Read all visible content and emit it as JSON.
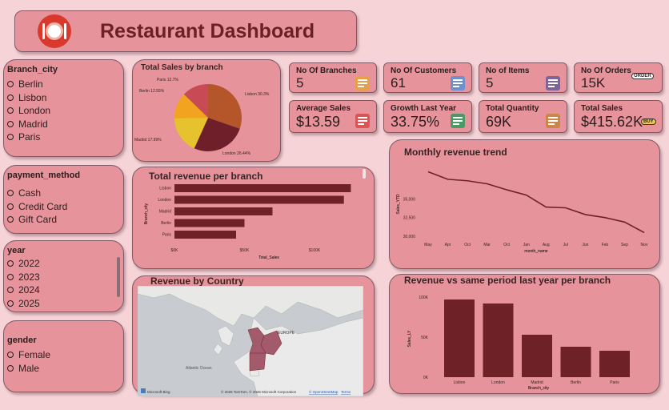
{
  "header": {
    "title": "Restaurant Dashboard"
  },
  "slicers": {
    "branch": {
      "title": "Branch_city",
      "options": [
        "Berlin",
        "Lisbon",
        "London",
        "Madrid",
        "Paris"
      ]
    },
    "payment": {
      "title": "payment_method",
      "options": [
        "Cash",
        "Credit Card",
        "Gift Card"
      ]
    },
    "year": {
      "title": "year",
      "options": [
        "2022",
        "2023",
        "2024",
        "2025"
      ]
    },
    "gender": {
      "title": "gender",
      "options": [
        "Female",
        "Male"
      ]
    }
  },
  "cards": [
    {
      "label": "No Of Branches",
      "value": "5",
      "icon": "network-icon"
    },
    {
      "label": "No Of Customers",
      "value": "61",
      "icon": "people-icon"
    },
    {
      "label": "No of Items",
      "value": "5",
      "icon": "list-icon"
    },
    {
      "label": "No Of Orders",
      "value": "15K",
      "icon": "order-icon",
      "badge": "ORDER"
    },
    {
      "label": "Average Sales",
      "value": "$13.59",
      "icon": "person-chart-icon"
    },
    {
      "label": "Growth Last Year",
      "value": "33.75%",
      "icon": "growth-runner-icon"
    },
    {
      "label": "Total Quantity",
      "value": "69K",
      "icon": "boxes-icon"
    },
    {
      "label": "Total Sales",
      "value": "$415.62K",
      "icon": "shopping-bag-icon",
      "badge": "BUY"
    }
  ],
  "colors": {
    "panel": "#e7939b",
    "bar": "#6e2228",
    "line": "#6e2228",
    "pie": {
      "Lisbon": "#b5552a",
      "London": "#6e1f2a",
      "Madrid": "#e6c22e",
      "Berlin": "#f2a31f",
      "Paris": "#c74a55"
    }
  },
  "map": {
    "title": "Revenue by Country",
    "ocean_label": "Atlantic Ocean",
    "region_label": "EUROPE",
    "attribution": "© 2026 TomTom, © 2026 Microsoft Corporation",
    "terms_link": "Terms",
    "feedback_link": "© OpenStreetMap",
    "logo": "Microsoft Bing"
  },
  "chart_data": [
    {
      "type": "pie",
      "title": "Total Sales by branch",
      "categories": [
        "Lisbon",
        "London",
        "Madrid",
        "Berlin",
        "Paris"
      ],
      "values": [
        30.3,
        26.44,
        17.99,
        12.55,
        12.72
      ],
      "labels": [
        "Lisbon 30.3%",
        "London 26.44%",
        "Madrid 17.99%",
        "Berlin 12.55%",
        "Paris 12.7%"
      ]
    },
    {
      "type": "bar",
      "orientation": "horizontal",
      "title": "Total revenue per branch",
      "categories": [
        "Lisbon",
        "London",
        "Madrid",
        "Berlin",
        "Paris"
      ],
      "values": [
        126,
        121,
        70,
        50,
        44
      ],
      "xlabel": "Total_Sales",
      "ylabel": "Branch_city",
      "xticks": [
        "$0K",
        "$50K",
        "$100K"
      ],
      "xlim": [
        0,
        132
      ]
    },
    {
      "type": "line",
      "title": "Monthly revenue trend",
      "categories": [
        "May",
        "Apr",
        "Oct",
        "Mar",
        "Oct",
        "Jan",
        "Aug",
        "Jul",
        "Jun",
        "Feb",
        "Sep",
        "Nov"
      ],
      "values": [
        38600,
        37600,
        37400,
        37000,
        36200,
        35500,
        33900,
        33800,
        32900,
        32500,
        31900,
        30500
      ],
      "xlabel": "month_name",
      "ylabel": "Sales_YTD",
      "yticks": [
        "35,000",
        "32,500",
        "30,000"
      ],
      "ylim": [
        29800,
        39400
      ]
    },
    {
      "type": "bar",
      "title": "Revenue vs same period last year per branch",
      "categories": [
        "Lisbon",
        "London",
        "Madrid",
        "Berlin",
        "Paris"
      ],
      "values": [
        97,
        92,
        53,
        38,
        33
      ],
      "xlabel": "Branch_city",
      "ylabel": "Sales_LY",
      "yticks": [
        "100K",
        "50K",
        "0K"
      ],
      "ylim": [
        0,
        100
      ]
    }
  ]
}
